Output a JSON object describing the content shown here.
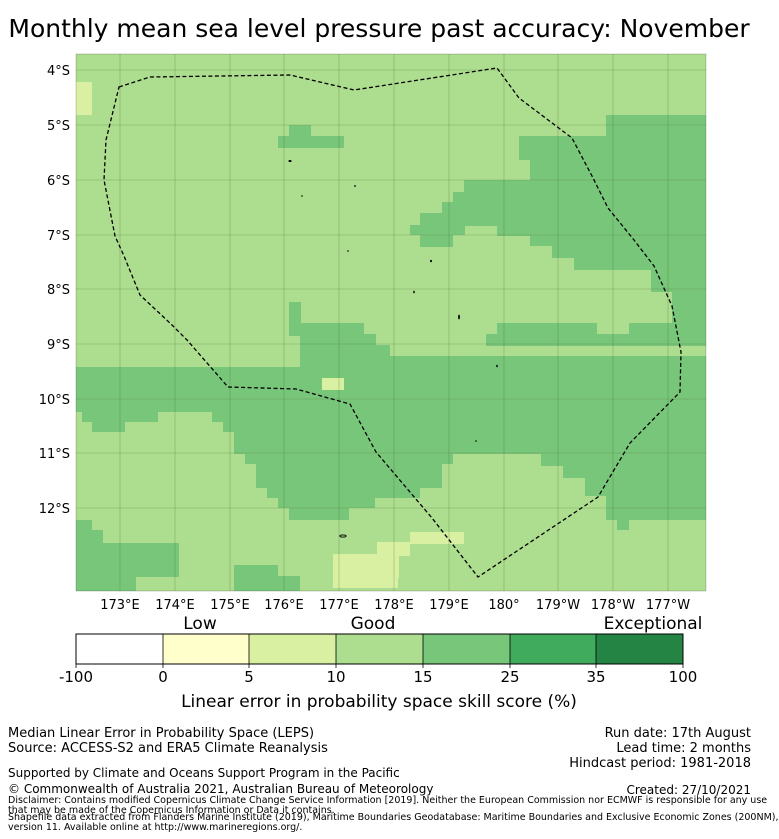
{
  "title": "Monthly mean sea level pressure past accuracy: November",
  "map": {
    "lat_labels": [
      "4°S",
      "5°S",
      "6°S",
      "7°S",
      "8°S",
      "9°S",
      "10°S",
      "11°S",
      "12°S"
    ],
    "lon_labels": [
      "173°E",
      "174°E",
      "175°E",
      "176°E",
      "177°E",
      "178°E",
      "179°E",
      "180°",
      "179°W",
      "178°W",
      "177°W"
    ],
    "colors": {
      "very_low": "#ffffff",
      "low": "#ffffcc",
      "good_low": "#d9f0a3",
      "good": "#addd8e",
      "good_high": "#78c679",
      "high": "#41ab5d",
      "exceptional": "#238443"
    }
  },
  "colorbar": {
    "categories": [
      "Low",
      "Good",
      "Exceptional"
    ],
    "ticks": [
      "-100",
      "0",
      "5",
      "10",
      "15",
      "25",
      "35",
      "100"
    ],
    "label": "Linear error in probability space skill score (%)"
  },
  "footer": {
    "left_line1": "Median Linear Error in Probability Space (LEPS)",
    "left_line2": "Source: ACCESS-S2 and ERA5 Climate Reanalysis",
    "right_line1": "Run date: 17th August",
    "right_line2": "Lead time: 2 months",
    "right_line3": "Hindcast period: 1981-2018",
    "supported": "Supported by Climate and Oceans Support Program in the Pacific",
    "copyright": "© Commonwealth of Australia 2021, Australian Bureau of Meteorology",
    "created": "Created: 27/10/2021",
    "disclaimer1": "Disclaimer: Contains modified Copernicus Climate Change Service Information [2019]. Neither the European Commission nor ECMWF is responsible for any use",
    "disclaimer2": "that may be made of the Copernicus Information or Data it contains.",
    "disclaimer3": "Shapefile data extracted from Flanders Marine Institute (2019), Maritime Boundaries Geodatabase: Maritime Boundaries and Exclusive Economic Zones (200NM),",
    "disclaimer4": "version 11. Available online at http://www.marineregions.org/."
  }
}
